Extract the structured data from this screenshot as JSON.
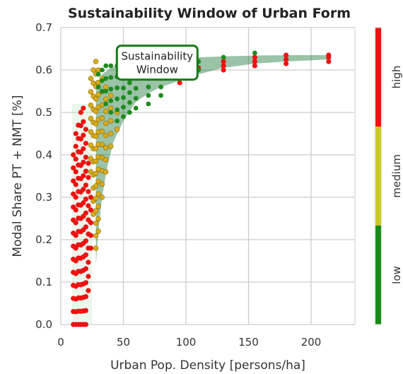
{
  "chart_data": {
    "type": "scatter",
    "title": "Sustainability Window of Urban Form",
    "xlabel": "Urban Pop. Density [persons/ha]",
    "ylabel": "Modal Share PT + NMT [%]",
    "xlim": [
      0,
      235
    ],
    "ylim": [
      0,
      0.7
    ],
    "xticks": [
      "0",
      "50",
      "100",
      "150",
      "200"
    ],
    "xtick_values": [
      0,
      50,
      100,
      150,
      200
    ],
    "yticks": [
      "0.0",
      "0.1",
      "0.2",
      "0.3",
      "0.4",
      "0.5",
      "0.6",
      "0.7"
    ],
    "ytick_values": [
      0,
      0.1,
      0.2,
      0.3,
      0.4,
      0.5,
      0.6,
      0.7
    ],
    "grid": true,
    "annotation": {
      "text_lines": [
        "Sustainability",
        "Window"
      ],
      "anchor": [
        77,
        0.614
      ],
      "color": "#1a7a1a"
    },
    "window_band": {
      "color": "#1e7a3c",
      "upper": [
        [
          28,
          0.56
        ],
        [
          33,
          0.59
        ],
        [
          40,
          0.605
        ],
        [
          50,
          0.615
        ],
        [
          60,
          0.62
        ],
        [
          70,
          0.622
        ],
        [
          80,
          0.625
        ],
        [
          95,
          0.628
        ],
        [
          110,
          0.63
        ],
        [
          130,
          0.632
        ],
        [
          155,
          0.634
        ],
        [
          180,
          0.635
        ],
        [
          215,
          0.635
        ]
      ],
      "lower": [
        [
          28,
          0.14
        ],
        [
          30,
          0.22
        ],
        [
          33,
          0.3
        ],
        [
          37,
          0.37
        ],
        [
          42,
          0.43
        ],
        [
          50,
          0.48
        ],
        [
          60,
          0.525
        ],
        [
          70,
          0.545
        ],
        [
          80,
          0.56
        ],
        [
          95,
          0.575
        ],
        [
          110,
          0.59
        ],
        [
          130,
          0.605
        ],
        [
          155,
          0.615
        ],
        [
          180,
          0.62
        ],
        [
          215,
          0.625
        ]
      ]
    },
    "colorbar": {
      "labels": [
        "low",
        "medium",
        "high"
      ],
      "colors": [
        "#1a8a1a",
        "#c8c832",
        "#ee1111"
      ]
    },
    "series": [
      {
        "level": "high",
        "color": "#ee1111",
        "columns": [
          {
            "x": 10,
            "y_min": 0.0,
            "y_max": 0.4,
            "n": 14
          },
          {
            "x": 12,
            "y_min": 0.0,
            "y_max": 0.45,
            "n": 16
          },
          {
            "x": 14,
            "y_min": 0.0,
            "y_max": 0.47,
            "n": 16
          },
          {
            "x": 16,
            "y_min": 0.0,
            "y_max": 0.5,
            "n": 17
          },
          {
            "x": 18,
            "y_min": 0.0,
            "y_max": 0.51,
            "n": 17
          },
          {
            "x": 20,
            "y_min": 0.0,
            "y_max": 0.46,
            "n": 15
          },
          {
            "x": 22,
            "y_min": 0.08,
            "y_max": 0.38,
            "n": 10
          },
          {
            "x": 24,
            "y_min": 0.18,
            "y_max": 0.3,
            "n": 5
          }
        ],
        "extras": [
          [
            95,
            0.57
          ],
          [
            110,
            0.605
          ],
          [
            130,
            0.6
          ],
          [
            130,
            0.61
          ],
          [
            130,
            0.62
          ],
          [
            155,
            0.61
          ],
          [
            155,
            0.62
          ],
          [
            155,
            0.63
          ],
          [
            180,
            0.615
          ],
          [
            180,
            0.625
          ],
          [
            180,
            0.635
          ],
          [
            214,
            0.62
          ],
          [
            214,
            0.63
          ],
          [
            214,
            0.635
          ]
        ]
      },
      {
        "level": "medium",
        "color": "#d9ac1a",
        "columns": [
          {
            "x": 24,
            "y_min": 0.36,
            "y_max": 0.58,
            "n": 8
          },
          {
            "x": 26,
            "y_min": 0.26,
            "y_max": 0.6,
            "n": 12
          },
          {
            "x": 28,
            "y_min": 0.18,
            "y_max": 0.62,
            "n": 16
          },
          {
            "x": 30,
            "y_min": 0.22,
            "y_max": 0.6,
            "n": 14
          },
          {
            "x": 33,
            "y_min": 0.3,
            "y_max": 0.58,
            "n": 10
          },
          {
            "x": 36,
            "y_min": 0.36,
            "y_max": 0.56,
            "n": 8
          },
          {
            "x": 40,
            "y_min": 0.42,
            "y_max": 0.54,
            "n": 5
          },
          {
            "x": 45,
            "y_min": 0.46,
            "y_max": 0.5,
            "n": 2
          }
        ],
        "extras": []
      },
      {
        "level": "low",
        "color": "#1e8a1e",
        "columns": [
          {
            "x": 30,
            "y_min": 0.56,
            "y_max": 0.59,
            "n": 2
          },
          {
            "x": 33,
            "y_min": 0.55,
            "y_max": 0.6,
            "n": 3
          },
          {
            "x": 36,
            "y_min": 0.52,
            "y_max": 0.61,
            "n": 4
          },
          {
            "x": 40,
            "y_min": 0.5,
            "y_max": 0.61,
            "n": 5
          },
          {
            "x": 45,
            "y_min": 0.48,
            "y_max": 0.61,
            "n": 6
          },
          {
            "x": 50,
            "y_min": 0.49,
            "y_max": 0.58,
            "n": 5
          },
          {
            "x": 55,
            "y_min": 0.5,
            "y_max": 0.57,
            "n": 4
          },
          {
            "x": 60,
            "y_min": 0.51,
            "y_max": 0.58,
            "n": 4
          },
          {
            "x": 70,
            "y_min": 0.52,
            "y_max": 0.58,
            "n": 4
          },
          {
            "x": 80,
            "y_min": 0.54,
            "y_max": 0.58,
            "n": 3
          },
          {
            "x": 110,
            "y_min": 0.6,
            "y_max": 0.62,
            "n": 2
          },
          {
            "x": 130,
            "y_min": 0.625,
            "y_max": 0.63,
            "n": 1
          },
          {
            "x": 155,
            "y_min": 0.635,
            "y_max": 0.64,
            "n": 1
          }
        ],
        "extras": []
      }
    ]
  }
}
